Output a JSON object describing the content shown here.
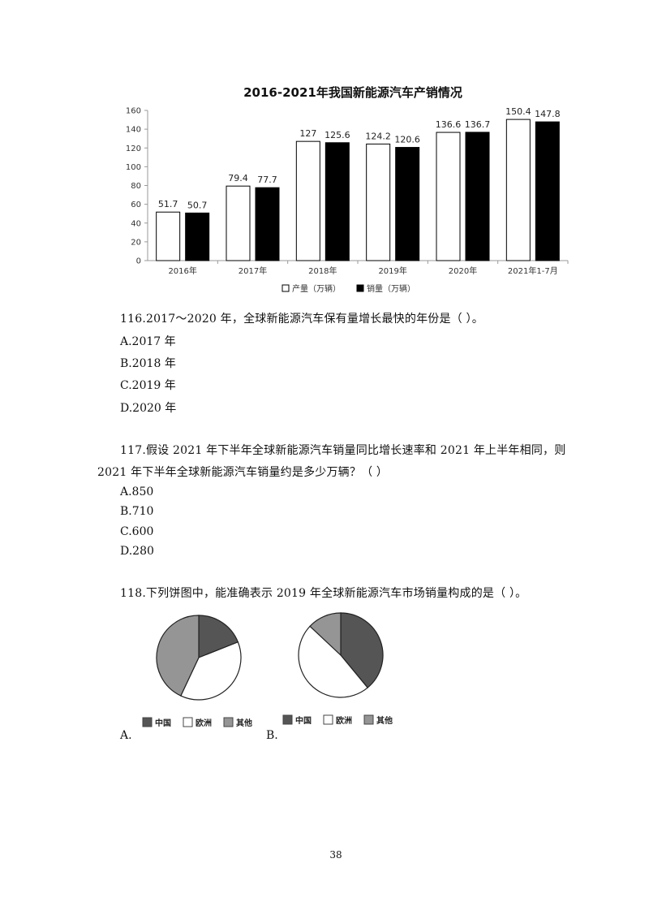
{
  "chart_data": {
    "type": "bar",
    "title": "2016-2021年我国新能源汽车产销情况",
    "categories": [
      "2016年",
      "2017年",
      "2018年",
      "2019年",
      "2020年",
      "2021年1-7月"
    ],
    "series": [
      {
        "name": "产量（万辆）",
        "values": [
          51.7,
          79.4,
          127,
          124.2,
          136.6,
          150.4
        ],
        "color": "#ffffff"
      },
      {
        "name": "销量（万辆）",
        "values": [
          50.7,
          77.7,
          125.6,
          120.6,
          136.7,
          147.8
        ],
        "color": "#000000"
      }
    ],
    "yticks": [
      0,
      20,
      40,
      60,
      80,
      100,
      120,
      140,
      160
    ],
    "ylim": [
      0,
      160
    ],
    "legend_position": "bottom",
    "grid": false
  },
  "questions": [
    {
      "stem": "116.2017～2020 年，全球新能源汽车保有量增长最快的年份是（ ）。",
      "options": [
        "A.2017 年",
        "B.2018 年",
        "C.2019 年",
        "D.2020 年"
      ]
    },
    {
      "stem_line1": "117.假设 2021 年下半年全球新能源汽车销量同比增长速率和 2021 年上半年相同，则",
      "stem_line2": "2021 年下半年全球新能源汽车销量约是多少万辆？（ ）",
      "options": [
        "A.850",
        "B.710",
        "C.600",
        "D.280"
      ]
    },
    {
      "stem": "118.下列饼图中，能准确表示 2019 年全球新能源汽车市场销量构成的是（ ）。",
      "options": [
        "A.",
        "B."
      ]
    }
  ],
  "pies": {
    "legend": [
      "中国",
      "欧洲",
      "其他"
    ],
    "colors": {
      "中国": "#555555",
      "欧洲": "#ffffff",
      "其他": "#959595"
    },
    "A": {
      "中国": 0.19,
      "欧洲": 0.38,
      "其他": 0.43
    },
    "B": {
      "中国": 0.39,
      "欧洲": 0.48,
      "其他": 0.13
    }
  },
  "page_number": "38"
}
